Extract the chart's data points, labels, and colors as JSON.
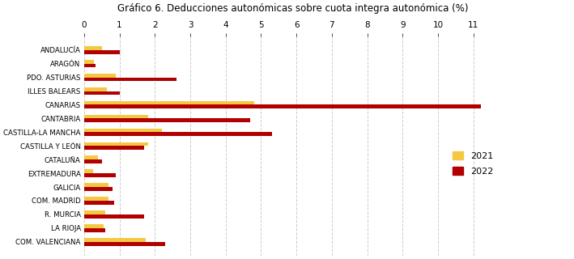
{
  "title": "Gráfico 6. Deducciones autonómicas sobre cuota integra autonómica (%)",
  "categories": [
    "ANDALUCÍA",
    "ARAGÓN",
    "PDO. ASTURIAS",
    "ILLES BALEARS",
    "CANARIAS",
    "CANTABRIA",
    "CASTILLA-LA MANCHA",
    "CASTILLA Y LEÓN",
    "CATALUÑA",
    "EXTREMADURA",
    "GALICIA",
    "COM. MADRID",
    "R. MURCIA",
    "LA RIOJA",
    "COM. VALENCIANA"
  ],
  "values_2021": [
    0.5,
    0.28,
    0.9,
    0.65,
    4.8,
    1.8,
    2.2,
    1.8,
    0.4,
    0.25,
    0.7,
    0.7,
    0.6,
    0.55,
    1.75
  ],
  "values_2022": [
    1.0,
    0.32,
    2.6,
    1.0,
    11.2,
    4.7,
    5.3,
    1.7,
    0.5,
    0.9,
    0.8,
    0.85,
    1.7,
    0.6,
    2.3
  ],
  "color_2021": "#F5C842",
  "color_2022": "#B00000",
  "xlim": [
    0,
    11.8
  ],
  "xticks": [
    0,
    1,
    2,
    3,
    4,
    5,
    6,
    7,
    8,
    9,
    10,
    11
  ],
  "background_color": "#FFFFFF",
  "legend_2021": "2021",
  "legend_2022": "2022"
}
